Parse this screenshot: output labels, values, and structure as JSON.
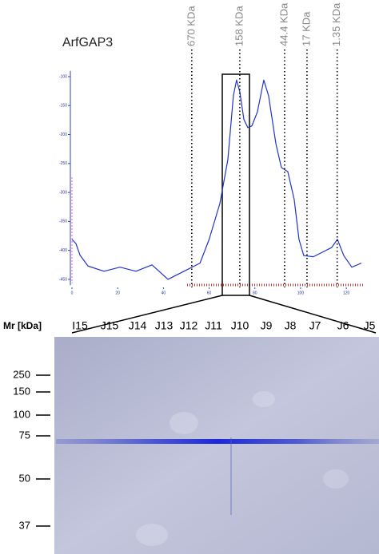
{
  "chart_data": {
    "type": "line",
    "title": "ArfGAP3",
    "x": [
      0,
      1.7,
      3.5,
      7,
      14,
      21,
      28,
      35,
      42,
      49,
      56,
      60,
      64.7,
      68.2,
      70.6,
      72,
      73.4,
      75.2,
      76.9,
      78.7,
      81.1,
      83.9,
      86,
      89.2,
      91.6,
      94.4,
      97.2,
      99.3,
      101.4,
      105.6,
      110.1,
      113.6,
      116.1,
      118.9,
      122.4,
      126.6
    ],
    "values": [
      -381,
      -388,
      -408,
      -427,
      -436,
      -429,
      -436,
      -425,
      -450,
      -436,
      -422,
      -381,
      -319,
      -243,
      -133,
      -106,
      -126,
      -174,
      -188,
      -185,
      -161,
      -106,
      -133,
      -216,
      -257,
      -264,
      -312,
      -381,
      -409,
      -411,
      -402,
      -395,
      -381,
      -409,
      -429,
      -422
    ],
    "color": "#2233cc",
    "xlim": [
      0,
      128
    ],
    "ylim": [
      -460,
      -90
    ],
    "xticks": [
      0,
      20,
      40,
      60,
      80,
      100,
      120
    ],
    "yticks": [
      -100,
      -150,
      -200,
      -250,
      -300,
      -350,
      -400,
      -450
    ],
    "markers": [
      {
        "label": "670 KDa",
        "x": 52.4
      },
      {
        "label": "158 KDa",
        "x": 73.4
      },
      {
        "label": "44.4 KDa",
        "x": 93
      },
      {
        "label": "17 KDa",
        "x": 102.8
      },
      {
        "label": "1.35 KDa",
        "x": 116
      }
    ]
  },
  "gel": {
    "axis_label": "Mr [kDa]",
    "lanes": [
      "I15",
      "J15",
      "J14",
      "J13",
      "J12",
      "J11",
      "J10",
      "J9",
      "J8",
      "J7",
      "J6",
      "J5"
    ],
    "mr_markers": [
      250,
      150,
      100,
      75,
      50,
      37
    ]
  }
}
